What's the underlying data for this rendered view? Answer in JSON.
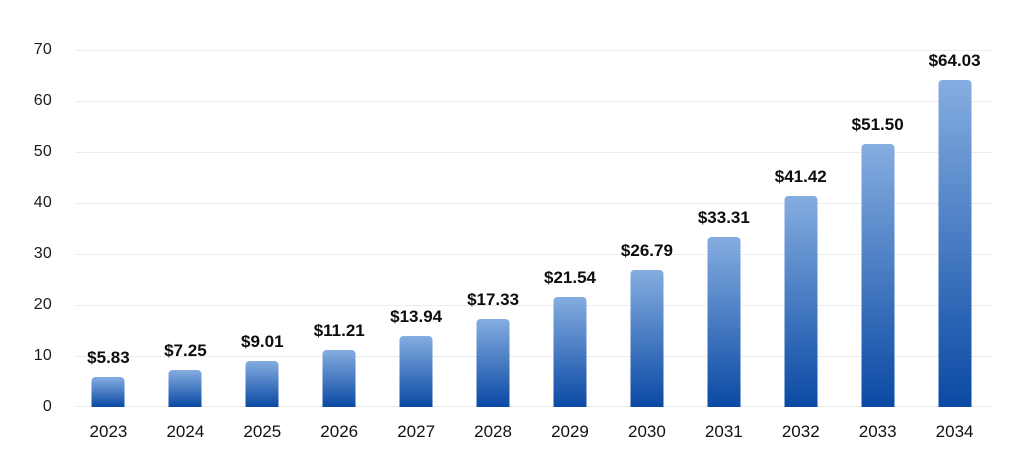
{
  "chart_data": {
    "type": "bar",
    "title": "",
    "xlabel": "",
    "ylabel": "",
    "categories": [
      "2023",
      "2024",
      "2025",
      "2026",
      "2027",
      "2028",
      "2029",
      "2030",
      "2031",
      "2032",
      "2033",
      "2034"
    ],
    "values": [
      5.83,
      7.25,
      9.01,
      11.21,
      13.94,
      17.33,
      21.54,
      26.79,
      33.31,
      41.42,
      51.5,
      64.03
    ],
    "value_labels": [
      "$5.83",
      "$7.25",
      "$9.01",
      "$11.21",
      "$13.94",
      "$17.33",
      "$21.54",
      "$26.79",
      "$33.31",
      "$41.42",
      "$51.50",
      "$64.03"
    ],
    "ylim": [
      0,
      70
    ],
    "yticks": [
      0,
      10,
      20,
      30,
      40,
      50,
      60,
      70
    ],
    "grid": true,
    "legend": false,
    "colors": {
      "bar_gradient_top": "#85ade0",
      "bar_gradient_bottom": "#0a49a4",
      "gridline": "#ececec",
      "text": "#111111"
    }
  }
}
